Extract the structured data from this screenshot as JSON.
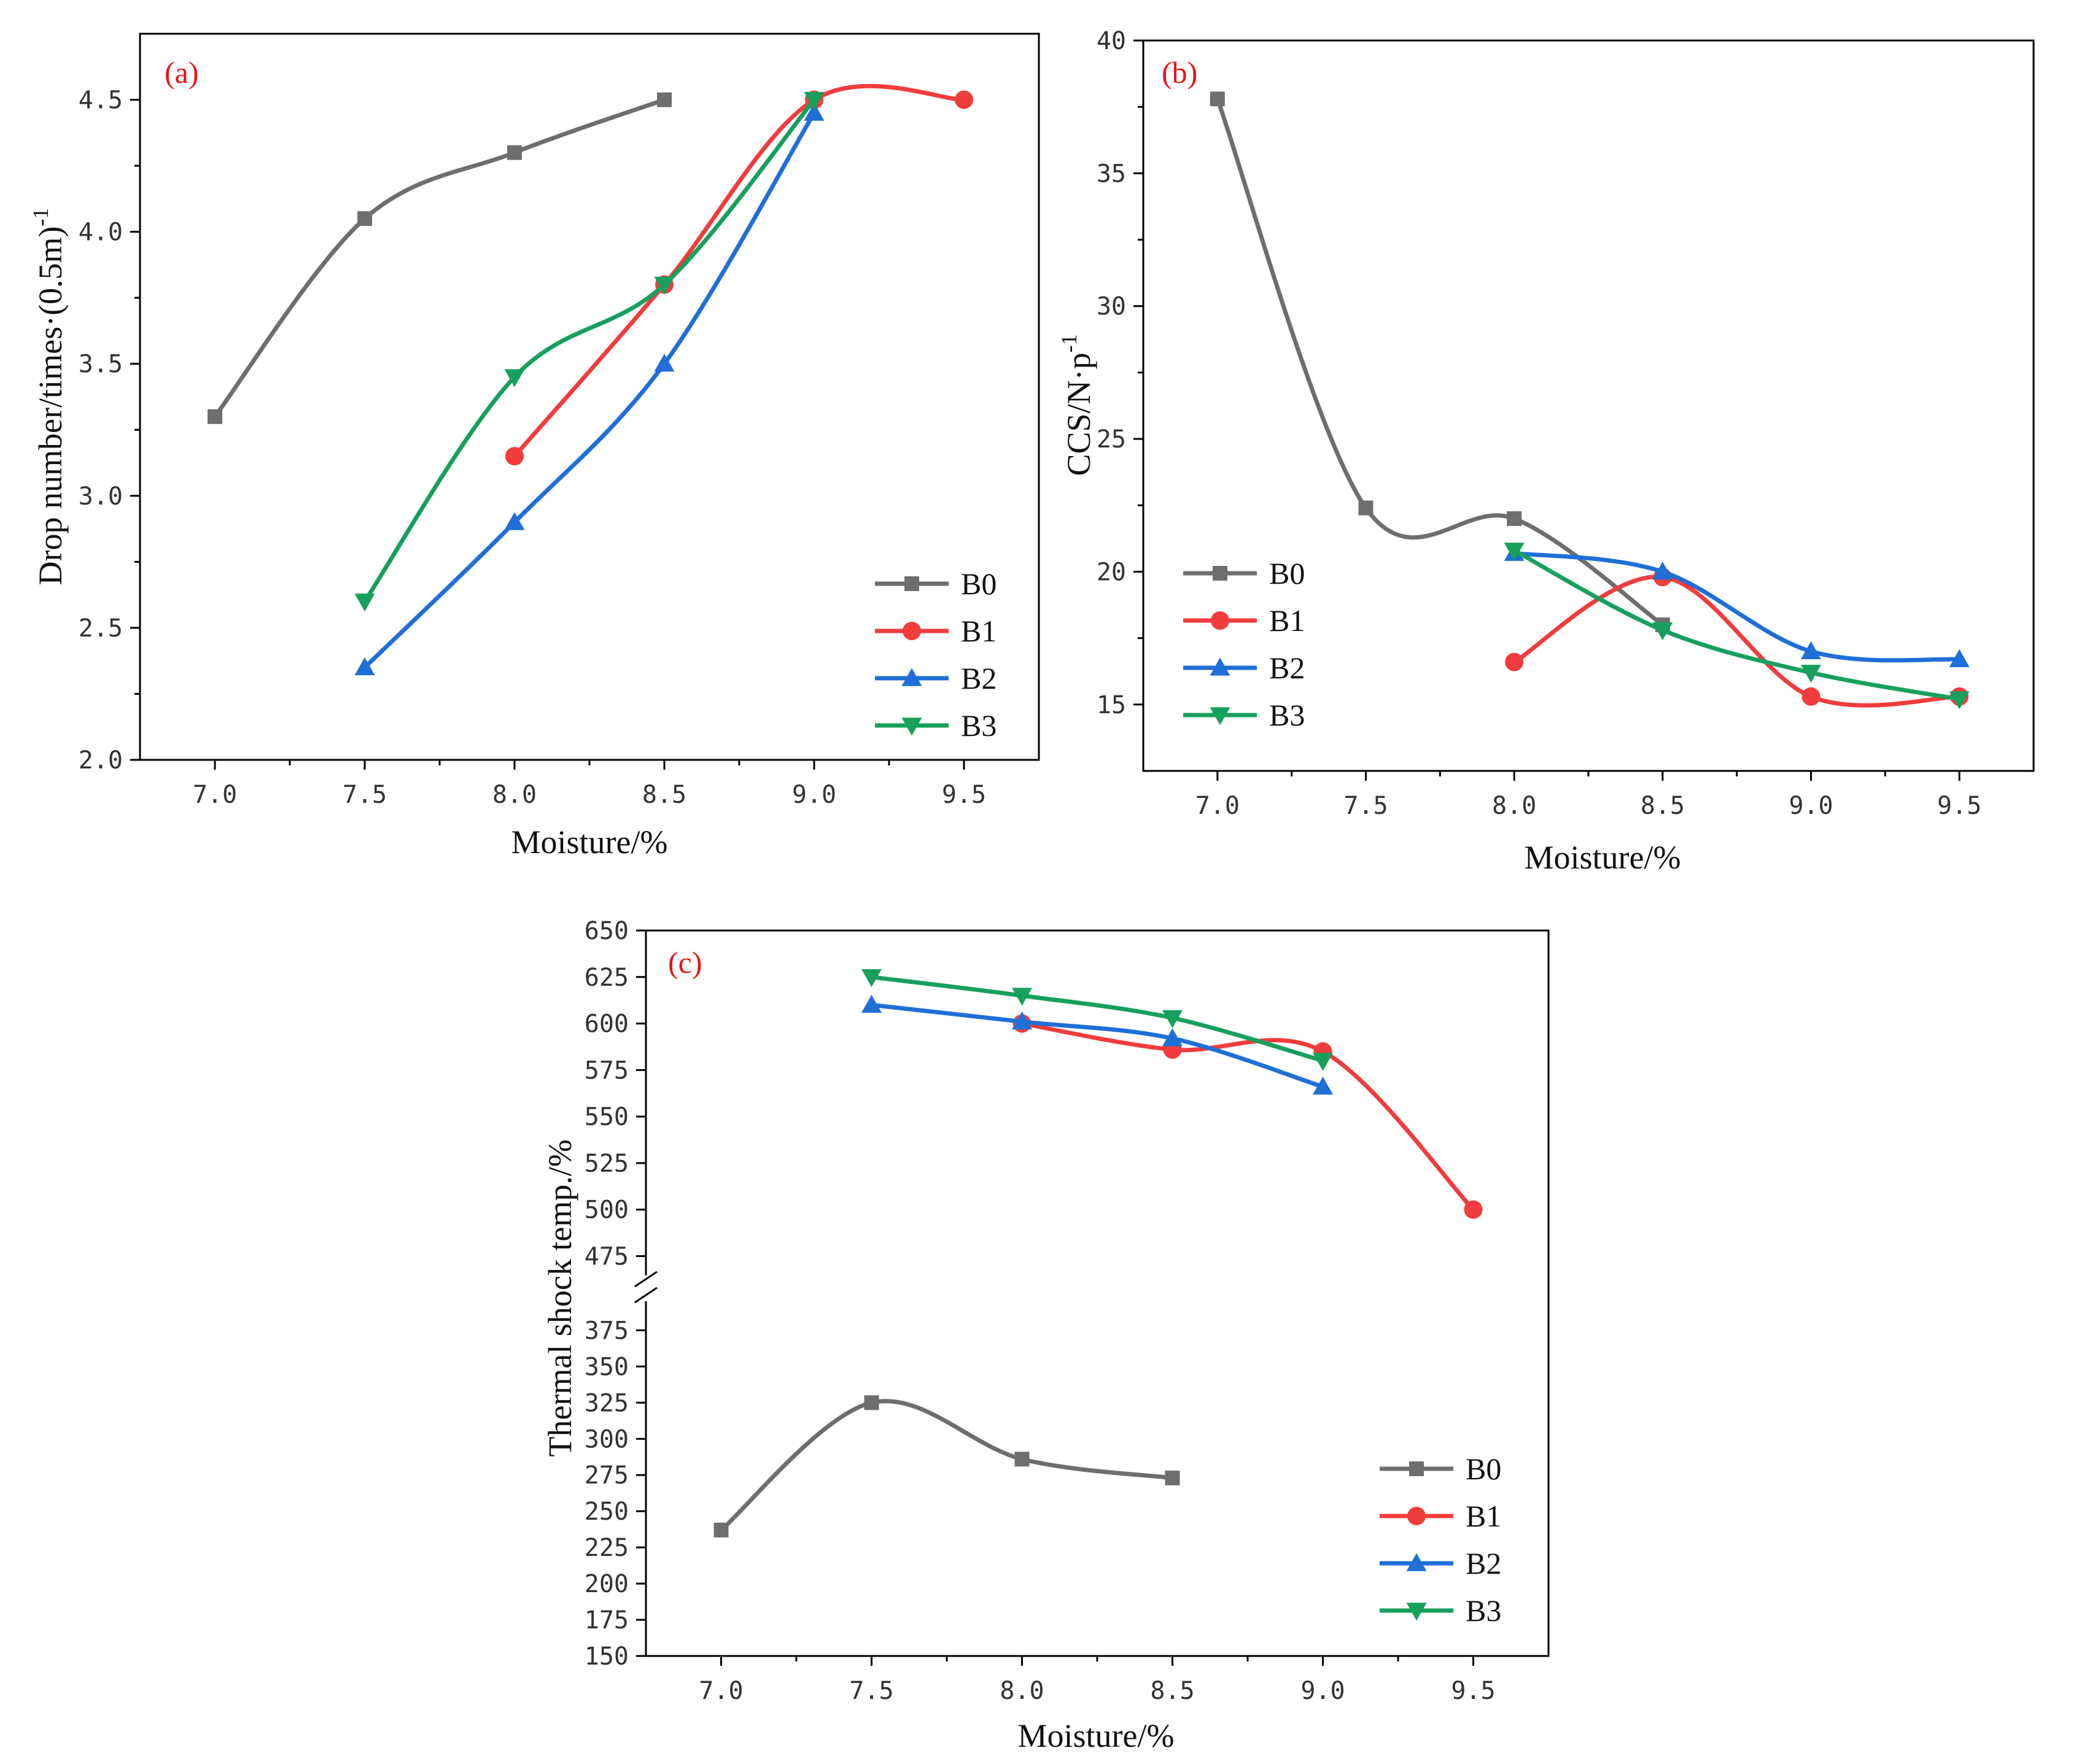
{
  "figure": {
    "series_colors": {
      "B0": "#6e6e6e",
      "B1": "#f03c3c",
      "B2": "#1f6fd6",
      "B3": "#17a05d"
    },
    "marker_shapes": {
      "B0": "square",
      "B1": "circle",
      "B2": "triangle-up",
      "B3": "triangle-down"
    },
    "panel_label_color": "#e8141a"
  },
  "chart_data": [
    {
      "panel": "(a)",
      "type": "line",
      "xlabel": "Moisture/%",
      "ylabel": "Drop number/times·(0.5m)",
      "ylabel_sup": "-1",
      "xlim": [
        6.75,
        9.75
      ],
      "ylim": [
        2.0,
        4.75
      ],
      "xticks": [
        "7.0",
        "7.5",
        "8.0",
        "8.5",
        "9.0",
        "9.5"
      ],
      "yticks": [
        "2.0",
        "2.5",
        "3.0",
        "3.5",
        "4.0",
        "4.5"
      ],
      "legend": [
        "B0",
        "B1",
        "B2",
        "B3"
      ],
      "legend_position": "bottom-right",
      "series": [
        {
          "name": "B0",
          "x": [
            7.0,
            7.5,
            8.0,
            8.5
          ],
          "y": [
            3.3,
            4.05,
            4.3,
            4.5
          ]
        },
        {
          "name": "B1",
          "x": [
            8.0,
            8.5,
            9.0,
            9.5
          ],
          "y": [
            3.15,
            3.8,
            4.5,
            4.5
          ]
        },
        {
          "name": "B2",
          "x": [
            7.5,
            8.0,
            8.5,
            9.0
          ],
          "y": [
            2.35,
            2.9,
            3.5,
            4.45
          ]
        },
        {
          "name": "B3",
          "x": [
            7.5,
            8.0,
            8.5,
            9.0
          ],
          "y": [
            2.6,
            3.45,
            3.8,
            4.5
          ]
        }
      ]
    },
    {
      "panel": "(b)",
      "type": "line",
      "xlabel": "Moisture/%",
      "ylabel": "CCS/N·p",
      "ylabel_sup": "-1",
      "xlim": [
        6.75,
        9.75
      ],
      "ylim": [
        12.5,
        40
      ],
      "xticks": [
        "7.0",
        "7.5",
        "8.0",
        "8.5",
        "9.0",
        "9.5"
      ],
      "yticks": [
        "15",
        "20",
        "25",
        "30",
        "35",
        "40"
      ],
      "legend": [
        "B0",
        "B1",
        "B2",
        "B3"
      ],
      "legend_position": "bottom-left",
      "series": [
        {
          "name": "B0",
          "x": [
            7.0,
            7.5,
            8.0,
            8.5
          ],
          "y": [
            37.8,
            22.4,
            22.0,
            18.0
          ]
        },
        {
          "name": "B1",
          "x": [
            8.0,
            8.5,
            9.0,
            9.5
          ],
          "y": [
            16.6,
            19.8,
            15.3,
            15.3
          ]
        },
        {
          "name": "B2",
          "x": [
            8.0,
            8.5,
            9.0,
            9.5
          ],
          "y": [
            20.7,
            20.0,
            17.0,
            16.7
          ]
        },
        {
          "name": "B3",
          "x": [
            8.0,
            8.5,
            9.0,
            9.5
          ],
          "y": [
            20.8,
            17.8,
            16.2,
            15.2
          ]
        }
      ]
    },
    {
      "panel": "(c)",
      "type": "line",
      "xlabel": "Moisture/%",
      "ylabel": "Thermal shock temp./%",
      "xlim": [
        6.75,
        9.75
      ],
      "axis_break": {
        "lower_range": [
          150,
          390
        ],
        "upper_range": [
          460,
          650
        ]
      },
      "xticks": [
        "7.0",
        "7.5",
        "8.0",
        "8.5",
        "9.0",
        "9.5"
      ],
      "yticks_upper": [
        "475",
        "500",
        "525",
        "550",
        "575",
        "600",
        "625",
        "650"
      ],
      "yticks_lower": [
        "150",
        "175",
        "200",
        "225",
        "250",
        "275",
        "300",
        "325",
        "350",
        "375"
      ],
      "legend": [
        "B0",
        "B1",
        "B2",
        "B3"
      ],
      "legend_position": "bottom-right",
      "series": [
        {
          "name": "B0",
          "x": [
            7.0,
            7.5,
            8.0,
            8.5
          ],
          "y": [
            237,
            325,
            286,
            273
          ]
        },
        {
          "name": "B1",
          "x": [
            8.0,
            8.5,
            9.0,
            9.5
          ],
          "y": [
            600,
            586,
            585,
            500
          ]
        },
        {
          "name": "B2",
          "x": [
            7.5,
            8.0,
            8.5,
            9.0
          ],
          "y": [
            610,
            601,
            592,
            566
          ]
        },
        {
          "name": "B3",
          "x": [
            7.5,
            8.0,
            8.5,
            9.0
          ],
          "y": [
            625,
            615,
            603,
            580
          ]
        }
      ]
    }
  ]
}
